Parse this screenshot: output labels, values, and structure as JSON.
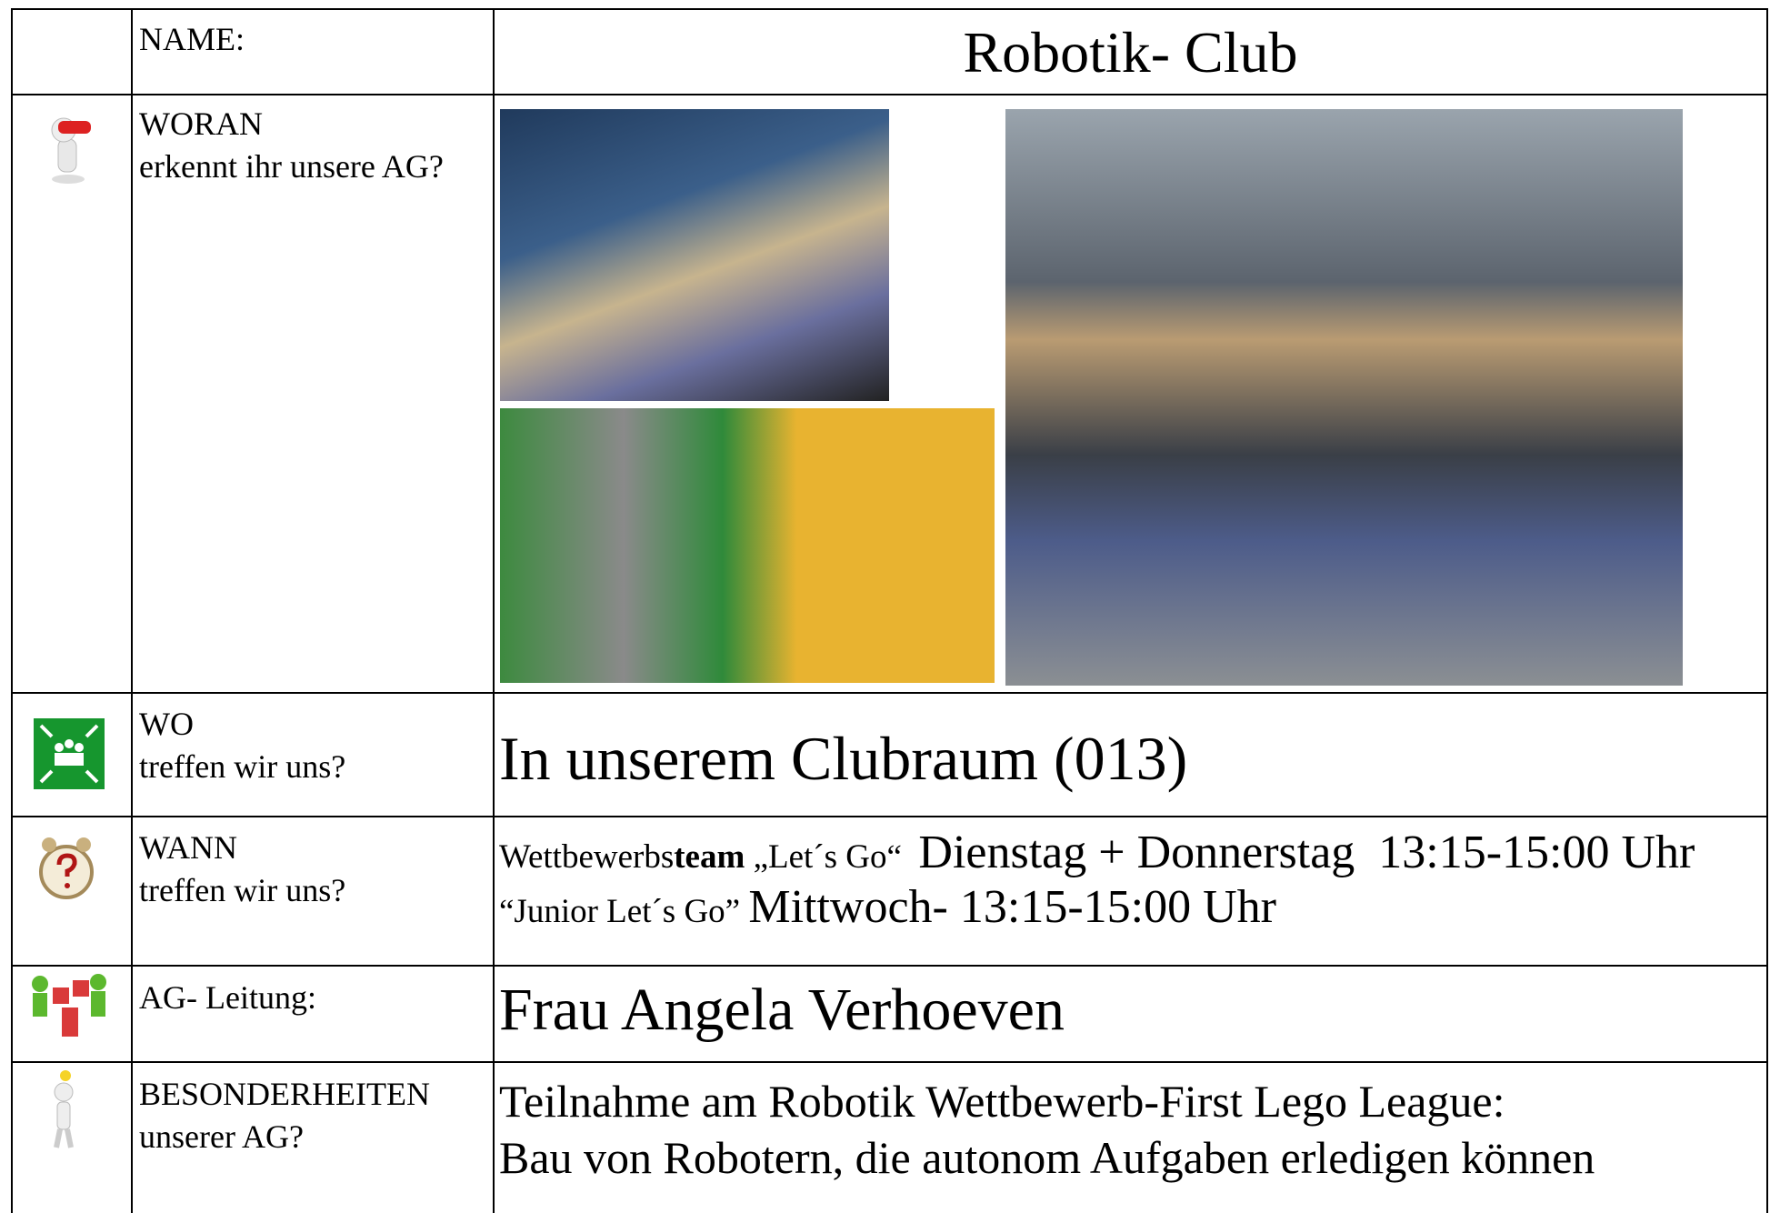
{
  "header": {
    "name_label": "NAME:",
    "title": "Robotik- Club"
  },
  "woran": {
    "label": [
      "WORAN",
      "erkennt ihr unsere AG?"
    ]
  },
  "wo": {
    "label": [
      "WO",
      "treffen wir uns?"
    ],
    "content": "In unserem Clubraum (013)"
  },
  "wann": {
    "label": [
      "WANN",
      "treffen wir uns?"
    ],
    "line1": {
      "prefix": "Wettbewerbs",
      "bold": "team",
      "team": " „Let´s Go“",
      "schedule": "Dienstag + Donnerstag  13:15-15:00 Uhr"
    },
    "line2": {
      "team": "“Junior Let´s Go”",
      "schedule": "Mittwoch- 13:15-15:00 Uhr"
    }
  },
  "leitung": {
    "label": "AG- Leitung:",
    "content": "Frau Angela Verhoeven"
  },
  "besonderheiten": {
    "label": [
      "BESONDERHEITEN",
      "unserer AG?"
    ],
    "content": [
      "Teilnahme am Robotik Wettbewerb-First Lego League:",
      "Bau von Robotern, die autonom Aufgaben erledigen können"
    ]
  }
}
